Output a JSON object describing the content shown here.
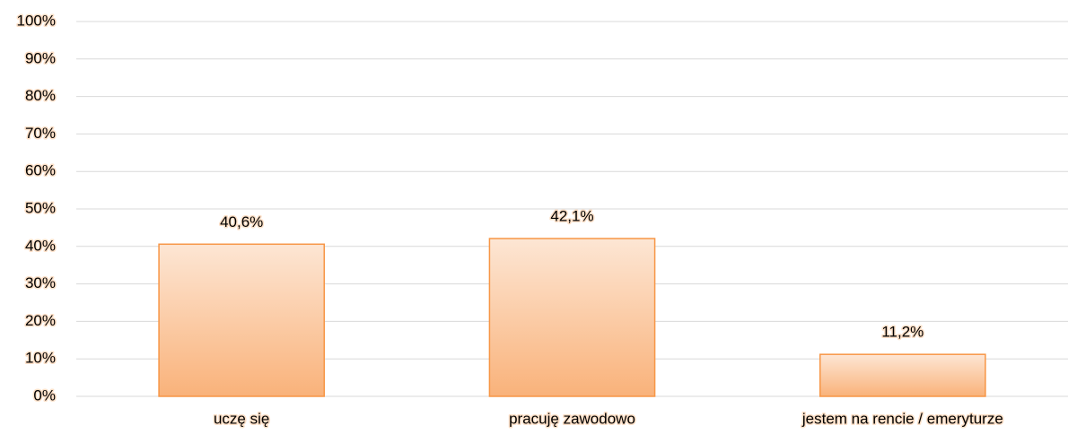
{
  "chart_data": {
    "type": "bar",
    "categories": [
      "uczę się",
      "pracuję zawodowo",
      "jestem na rencie / emeryturze"
    ],
    "values": [
      40.6,
      42.1,
      11.2
    ],
    "value_labels": [
      "40,6%",
      "42,1%",
      "11,2%"
    ],
    "color": "#f79646",
    "ylim": [
      0,
      100
    ],
    "yticks": [
      {
        "value": 0,
        "label": "0%"
      },
      {
        "value": 10,
        "label": "10%"
      },
      {
        "value": 20,
        "label": "20%"
      },
      {
        "value": 30,
        "label": "30%"
      },
      {
        "value": 40,
        "label": "40%"
      },
      {
        "value": 50,
        "label": "50%"
      },
      {
        "value": 60,
        "label": "60%"
      },
      {
        "value": 70,
        "label": "70%"
      },
      {
        "value": 80,
        "label": "80%"
      },
      {
        "value": 90,
        "label": "90%"
      },
      {
        "value": 100,
        "label": "100%"
      }
    ],
    "grid": true
  }
}
